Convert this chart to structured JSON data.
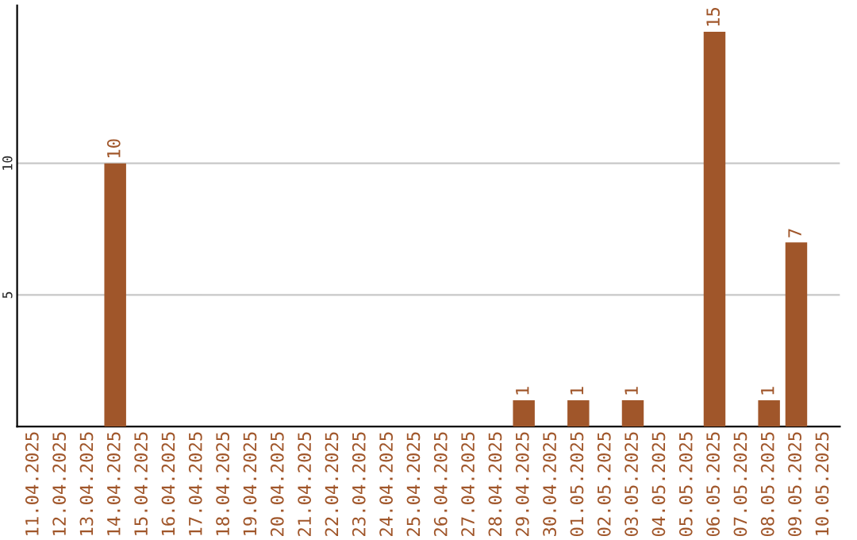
{
  "chart_data": {
    "type": "bar",
    "categories": [
      "11.04.2025",
      "12.04.2025",
      "13.04.2025",
      "14.04.2025",
      "15.04.2025",
      "16.04.2025",
      "17.04.2025",
      "18.04.2025",
      "19.04.2025",
      "20.04.2025",
      "21.04.2025",
      "22.04.2025",
      "23.04.2025",
      "24.04.2025",
      "25.04.2025",
      "26.04.2025",
      "27.04.2025",
      "28.04.2025",
      "29.04.2025",
      "30.04.2025",
      "01.05.2025",
      "02.05.2025",
      "03.05.2025",
      "04.05.2025",
      "05.05.2025",
      "06.05.2025",
      "07.05.2025",
      "08.05.2025",
      "09.05.2025",
      "10.05.2025"
    ],
    "values": [
      0,
      0,
      0,
      10,
      0,
      0,
      0,
      0,
      0,
      0,
      0,
      0,
      0,
      0,
      0,
      0,
      0,
      0,
      1,
      0,
      1,
      0,
      1,
      0,
      0,
      15,
      0,
      1,
      7,
      0
    ],
    "value_labels": [
      null,
      null,
      null,
      "10",
      null,
      null,
      null,
      null,
      null,
      null,
      null,
      null,
      null,
      null,
      null,
      null,
      null,
      null,
      "1",
      null,
      "1",
      null,
      "1",
      null,
      null,
      "15",
      null,
      "1",
      "7",
      null
    ],
    "color": "#a0562a",
    "ylim": [
      0,
      16
    ],
    "yticks": [
      5,
      10
    ],
    "grid": "y"
  }
}
